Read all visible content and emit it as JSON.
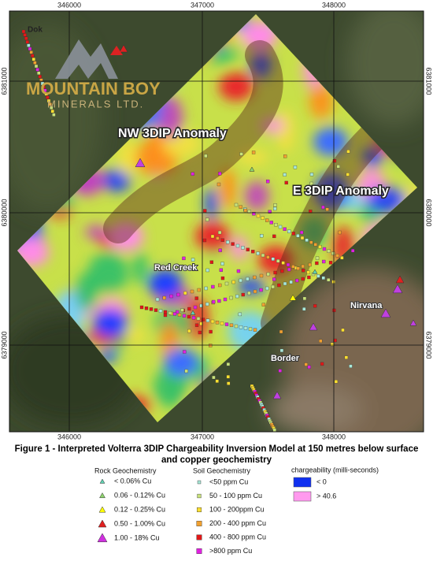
{
  "map": {
    "x_ticks": [
      346000,
      347000,
      348000
    ],
    "y_ticks": [
      6381000,
      6380000,
      6379000
    ],
    "labels": {
      "dok": "Dok",
      "nw_anomaly": "NW 3DIP Anomaly",
      "e_anomaly": "E 3DIP Anomaly",
      "red_creek": "Red Creek",
      "nirvana": "Nirvana",
      "border": "Border"
    },
    "logo": {
      "name": "MOUNTAIN BOY",
      "subtitle": "MINERALS LTD."
    }
  },
  "caption": "Figure 1 - Interpreted Volterra 3DIP Chargeability Inversion Model at 150 metres below surface and copper geochemistry",
  "legend": {
    "rock": {
      "title": "Rock Geochemistry",
      "items": [
        "< 0.06% Cu",
        "0.06 - 0.12% Cu",
        "0.12 - 0.25% Cu",
        "0.50 - 1.00% Cu",
        "1.00 - 18% Cu"
      ]
    },
    "soil": {
      "title": "Soil Geochemistry",
      "items": [
        "<50 ppm Cu",
        "50 - 100 ppm Cu",
        "100 - 200ppm Cu",
        "200 - 400 ppm Cu",
        "400 - 800 ppm Cu",
        ">800 ppm Cu"
      ]
    },
    "chargeability": {
      "title": "chargeability (milli-seconds)",
      "items": [
        "< 0",
        "> 40.6"
      ]
    }
  }
}
